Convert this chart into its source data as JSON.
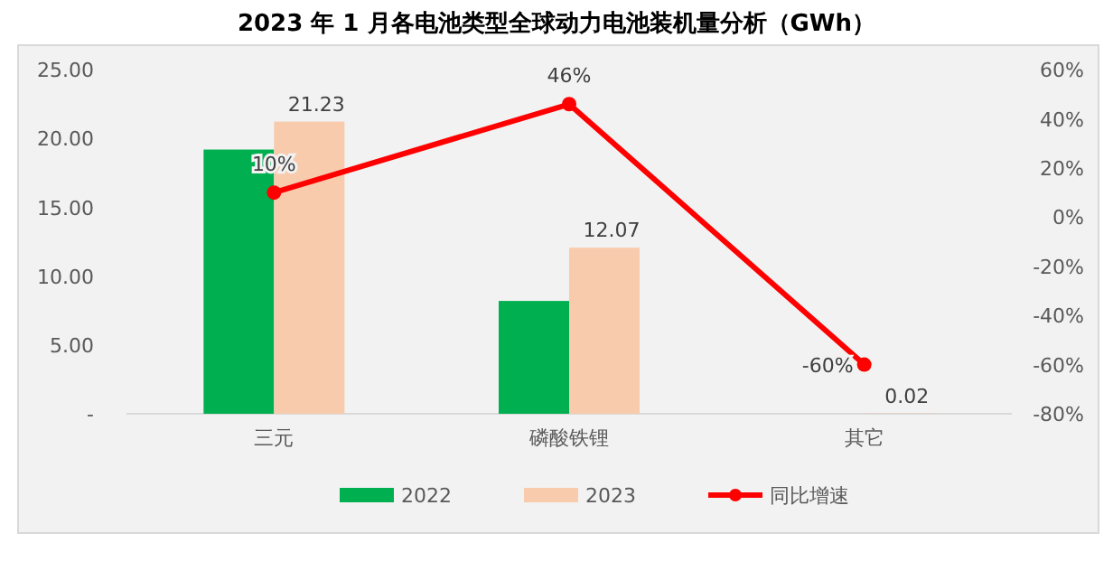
{
  "chart_data": {
    "type": "bar",
    "title": "2023 年 1 月各电池类型全球动力电池装机量分析（GWh）",
    "categories": [
      "三元",
      "磷酸铁锂",
      "其它"
    ],
    "series": [
      {
        "name": "2022",
        "color": "#00b050",
        "values": [
          19.2,
          8.2,
          0
        ]
      },
      {
        "name": "2023",
        "color": "#f8cbad",
        "values": [
          21.23,
          12.07,
          0.02
        ],
        "value_labels": [
          "21.23",
          "12.07",
          "0.02"
        ]
      },
      {
        "name": "同比增速",
        "type": "line",
        "axis": "y2",
        "color": "#ff0000",
        "marker": "circle",
        "values": [
          10,
          46,
          -60
        ],
        "value_labels": [
          "10%",
          "46%",
          "-60%"
        ]
      }
    ],
    "ylim": [
      0,
      25
    ],
    "yticks": [
      {
        "value": 0,
        "label": "-"
      },
      {
        "value": 5,
        "label": "5.00"
      },
      {
        "value": 10,
        "label": "10.00"
      },
      {
        "value": 15,
        "label": "15.00"
      },
      {
        "value": 20,
        "label": "20.00"
      },
      {
        "value": 25,
        "label": "25.00"
      }
    ],
    "y2lim": [
      -80,
      60
    ],
    "y2ticks": [
      {
        "value": -80,
        "label": "-80%"
      },
      {
        "value": -60,
        "label": "-60%"
      },
      {
        "value": -40,
        "label": "-40%"
      },
      {
        "value": -20,
        "label": "-20%"
      },
      {
        "value": 0,
        "label": "0%"
      },
      {
        "value": 20,
        "label": "20%"
      },
      {
        "value": 40,
        "label": "40%"
      },
      {
        "value": 60,
        "label": "60%"
      }
    ],
    "legend": "bottom"
  }
}
